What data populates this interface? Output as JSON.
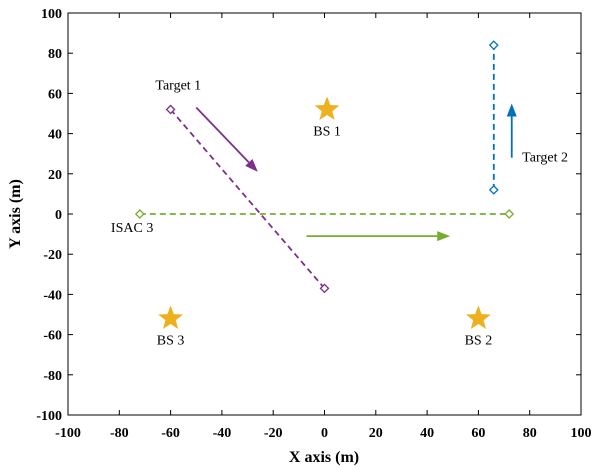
{
  "chart_data": {
    "type": "scatter",
    "title": "",
    "xlabel": "X axis (m)",
    "ylabel": "Y axis (m)",
    "xlim": [
      -100,
      100
    ],
    "ylim": [
      -100,
      100
    ],
    "xticks": [
      -100,
      -80,
      -60,
      -40,
      -20,
      0,
      20,
      40,
      60,
      80,
      100
    ],
    "yticks": [
      -100,
      -80,
      -60,
      -40,
      -20,
      0,
      20,
      40,
      60,
      80,
      100
    ],
    "grid": false,
    "colors": {
      "target1": "#7e2f8e",
      "target2": "#0072bd",
      "isac3": "#77ac30",
      "bs": "#edb120"
    },
    "series": [
      {
        "id": "target1",
        "name": "Target 1",
        "style": "dashed",
        "marker": "diamond",
        "points": [
          [
            -60,
            52
          ],
          [
            0,
            -37
          ]
        ]
      },
      {
        "id": "target2",
        "name": "Target 2",
        "style": "dashed",
        "marker": "diamond",
        "points": [
          [
            66,
            12
          ],
          [
            66,
            84
          ]
        ]
      },
      {
        "id": "isac3",
        "name": "ISAC 3",
        "style": "dashed",
        "marker": "diamond",
        "points": [
          [
            -72,
            0
          ],
          [
            72,
            0
          ]
        ]
      }
    ],
    "base_stations": [
      {
        "label": "BS 1",
        "x": 1,
        "y": 52
      },
      {
        "label": "BS 2",
        "x": 60,
        "y": -52
      },
      {
        "label": "BS 3",
        "x": -60,
        "y": -52
      }
    ],
    "arrows": [
      {
        "series": "target1",
        "from": [
          -50,
          53
        ],
        "to": [
          -26,
          21
        ]
      },
      {
        "series": "target2",
        "from": [
          73,
          28
        ],
        "to": [
          73,
          55
        ]
      },
      {
        "series": "isac3",
        "from": [
          -7,
          -11
        ],
        "to": [
          49,
          -11
        ]
      }
    ],
    "annotations": [
      {
        "text": "Target 1",
        "x": -57,
        "y": 62
      },
      {
        "text": "Target 2",
        "x": 86,
        "y": 26
      },
      {
        "text": "ISAC 3",
        "x": -75,
        "y": -9
      }
    ]
  }
}
